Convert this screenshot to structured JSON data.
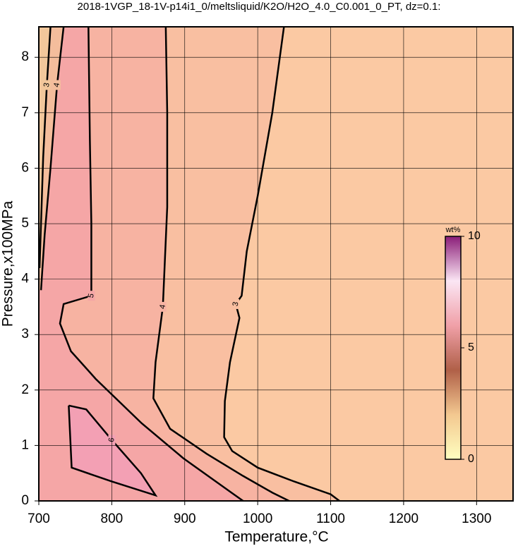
{
  "chart_data": {
    "type": "contour",
    "title": "2018-1VGP_18-1V-p14i1_0/meltsliquid/K2O/H2O_4.0_C0.001_0_PT, dz=0.1:",
    "x_label": "Temperature,°C",
    "y_label": "Pressure,x100MPa",
    "xlim": [
      700,
      1350
    ],
    "xticks": [
      700,
      800,
      900,
      1000,
      1100,
      1200,
      1300
    ],
    "ylim": [
      0,
      8.55
    ],
    "yticks": [
      0,
      1,
      2,
      3,
      4,
      5,
      6,
      7,
      8
    ],
    "grid": true,
    "background": "#fbc9a3",
    "contours": [
      {
        "level": 3,
        "fill": "#f9bfa1",
        "x": [
          1036,
          1020,
          1000,
          985,
          978,
          970,
          975,
          962,
          955,
          954,
          965,
          1000,
          1050,
          1100,
          1112
        ],
        "y": [
          8.55,
          7,
          5.5,
          4.5,
          3.7,
          3.55,
          3.3,
          2.5,
          1.8,
          1.15,
          0.9,
          0.6,
          0.35,
          0.12,
          0
        ]
      },
      {
        "level": 4,
        "fill": "#f7b3a2",
        "x": [
          874,
          876,
          876,
          870,
          860,
          857,
          880,
          930,
          980,
          1020,
          1043
        ],
        "y": [
          8.55,
          7,
          5.3,
          3.5,
          2.5,
          1.85,
          1.3,
          0.85,
          0.45,
          0.15,
          0
        ]
      },
      {
        "level": 5,
        "fill": "#f5a6a6",
        "x": [
          768,
          770,
          772,
          772,
          772,
          734,
          729,
          744,
          778,
          841,
          898,
          966,
          980
        ],
        "y": [
          8.55,
          6.5,
          5.0,
          4.6,
          3.7,
          3.55,
          3.2,
          2.7,
          2.2,
          1.4,
          0.77,
          0.13,
          0
        ]
      },
      {
        "level": 6,
        "fill": "#f3a0b4",
        "x": [
          741,
          765,
          800,
          840,
          860,
          800,
          745,
          741
        ],
        "y": [
          1.72,
          1.65,
          1.1,
          0.5,
          0.1,
          0.35,
          0.6,
          1.72
        ]
      },
      {
        "level": 4,
        "fill": "#f4bd9c",
        "x": [
          734,
          725,
          716,
          708,
          703
        ],
        "y": [
          8.55,
          7.5,
          6.0,
          4.8,
          3.8
        ]
      },
      {
        "level": 3,
        "fill": "#f2c79b",
        "x": [
          716,
          711,
          706,
          703,
          701
        ],
        "y": [
          8.55,
          7.5,
          6.2,
          5.0,
          4.2
        ]
      }
    ],
    "colorbar": {
      "label": "wt%",
      "lim": [
        0,
        10
      ],
      "ticks": [
        0,
        5,
        10
      ],
      "colors": [
        "#ffffc0",
        "#f3c890",
        "#b06048",
        "#f0a0a8",
        "#fbe6f4",
        "#8a1d78"
      ]
    }
  }
}
